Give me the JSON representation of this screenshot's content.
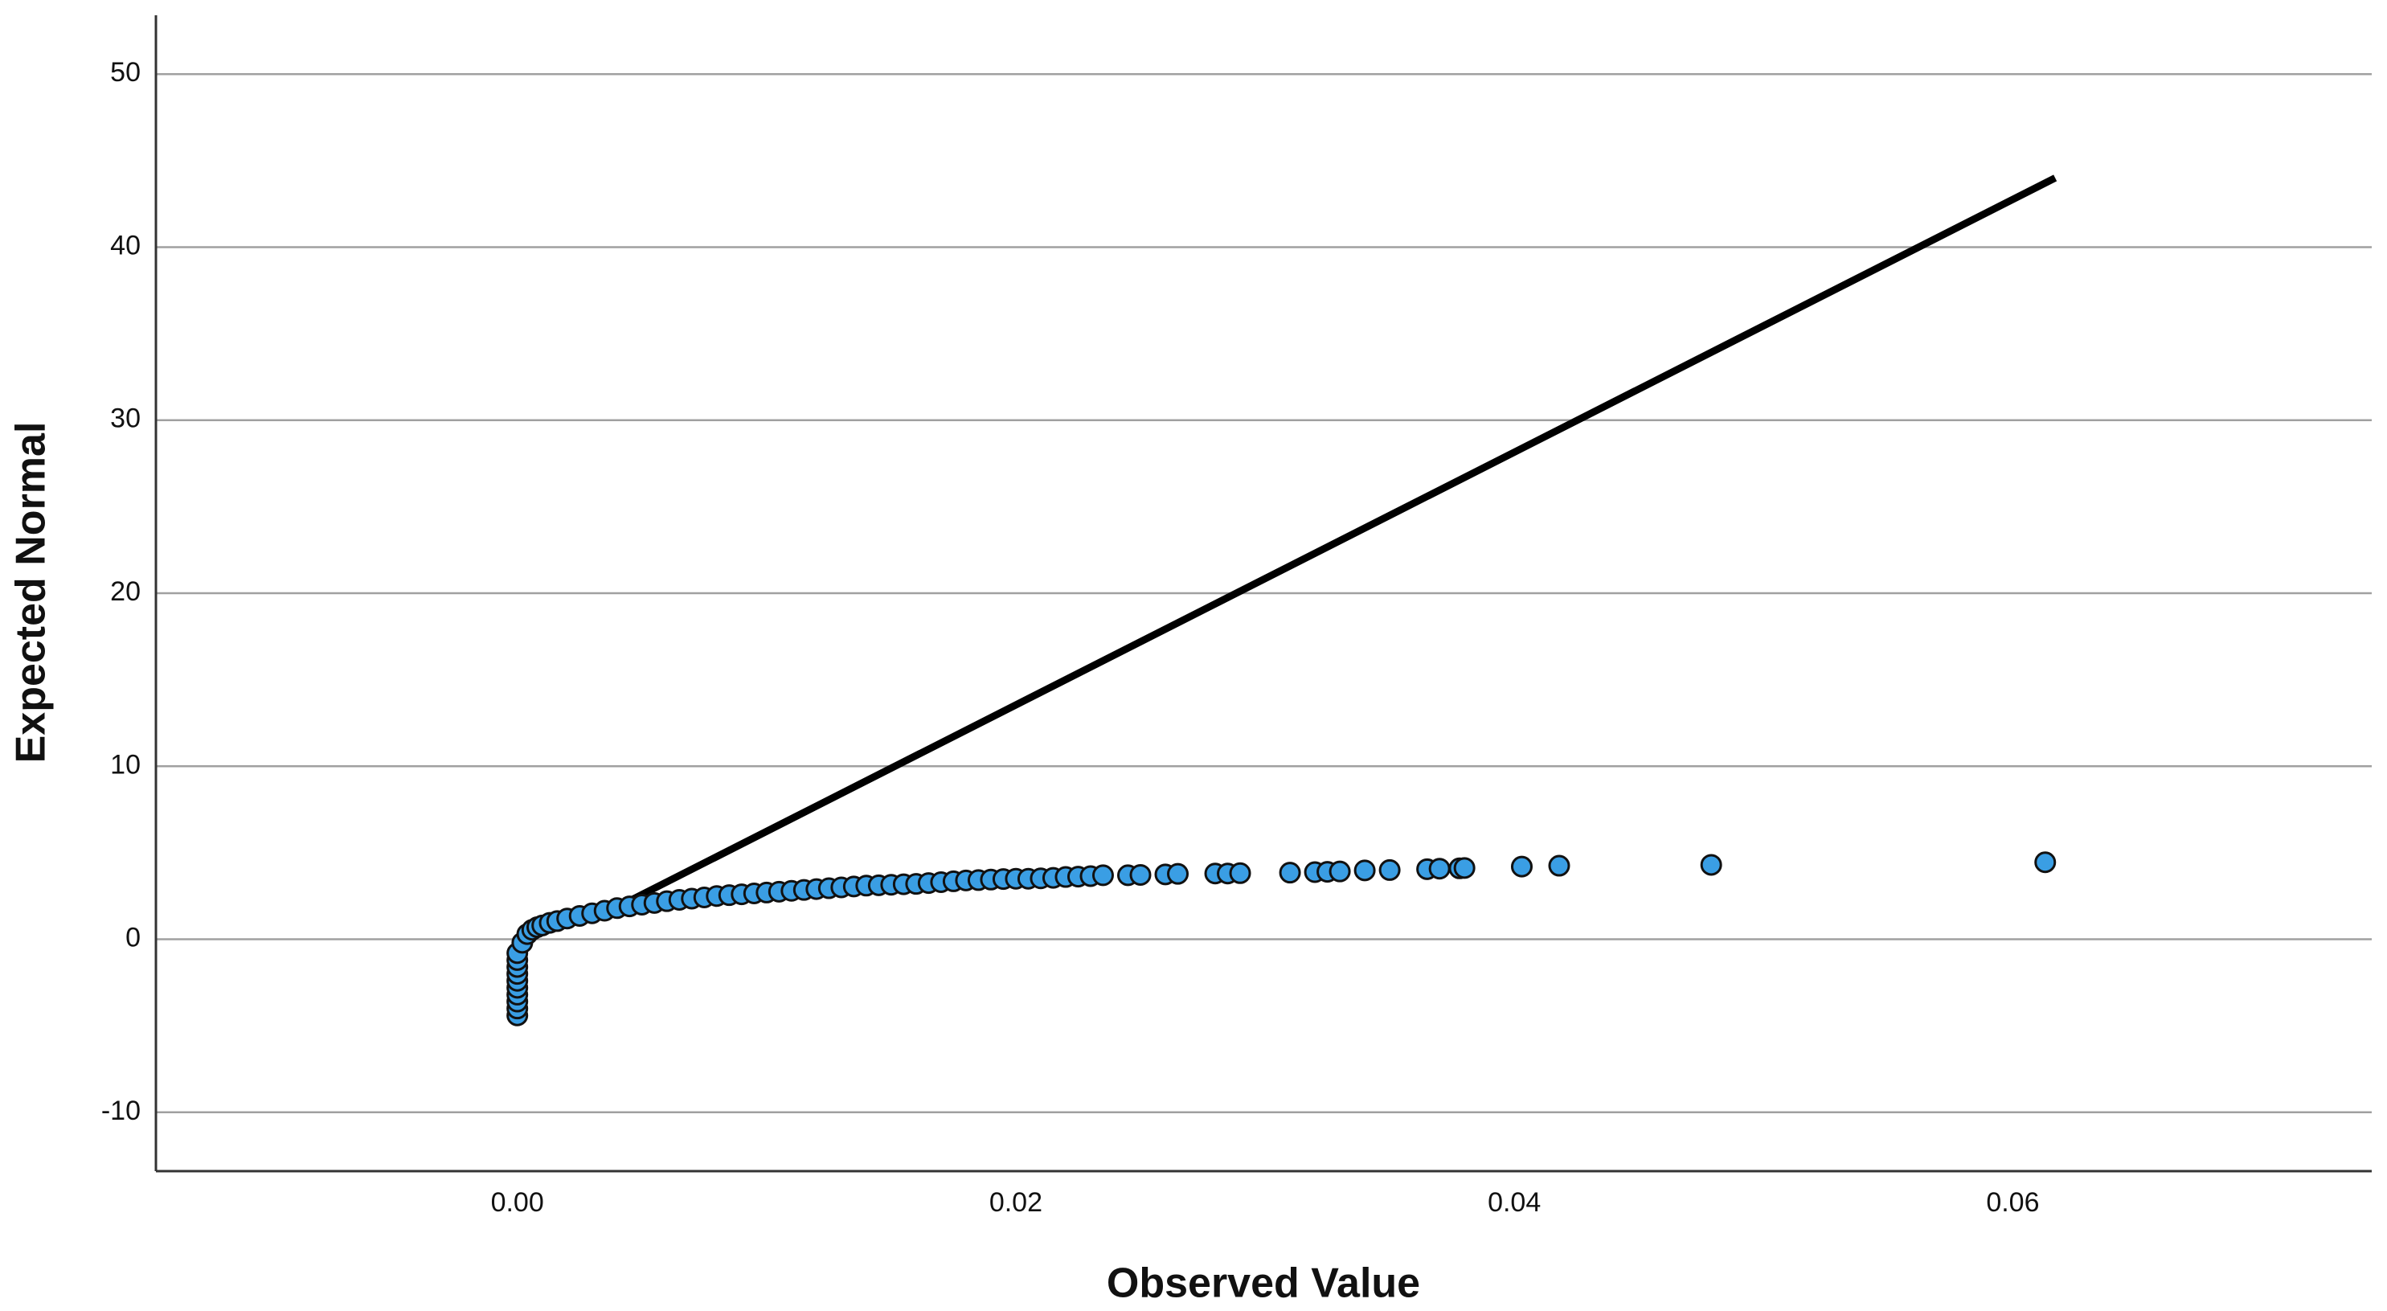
{
  "chart_data": {
    "type": "scatter",
    "x_label": "Observed Value",
    "y_label": "Expected Normal",
    "xlim": [
      -0.0145,
      0.0744
    ],
    "ylim": [
      -13.4,
      53.4
    ],
    "xticks": [
      {
        "value": 0,
        "label": "0.00"
      },
      {
        "value": 0.02,
        "label": "0.02"
      },
      {
        "value": 0.04,
        "label": "0.04"
      },
      {
        "value": 0.06,
        "label": "0.06"
      }
    ],
    "yticks": [
      -10,
      0,
      10,
      20,
      30,
      40,
      50
    ],
    "grid": true,
    "color": "#3a9ee4",
    "x": [
      0,
      0,
      0,
      0,
      0,
      0,
      0,
      0,
      0,
      0,
      0.0002,
      0.0004,
      0.0006,
      0.0008,
      0.001,
      0.0013,
      0.0016,
      0.002,
      0.0025,
      0.003,
      0.0035,
      0.004,
      0.0045,
      0.005,
      0.0055,
      0.006,
      0.0065,
      0.007,
      0.0075,
      0.008,
      0.0085,
      0.009,
      0.0095,
      0.01,
      0.0105,
      0.011,
      0.0115,
      0.012,
      0.0125,
      0.013,
      0.0135,
      0.014,
      0.0145,
      0.015,
      0.0155,
      0.016,
      0.0165,
      0.017,
      0.0175,
      0.018,
      0.0185,
      0.019,
      0.0195,
      0.02,
      0.0205,
      0.021,
      0.0215,
      0.022,
      0.0225,
      0.023,
      0.0235,
      0.0245,
      0.025,
      0.026,
      0.0265,
      0.028,
      0.0285,
      0.029,
      0.031,
      0.032,
      0.0325,
      0.033,
      0.034,
      0.035,
      0.0365,
      0.037,
      0.0378,
      0.038,
      0.0403,
      0.0418,
      0.0479,
      0.0613
    ],
    "values": [
      -4.4,
      -4.0,
      -3.6,
      -3.2,
      -2.8,
      -2.4,
      -2.0,
      -1.6,
      -1.2,
      -0.8,
      -0.2,
      0.3,
      0.55,
      0.7,
      0.8,
      0.95,
      1.05,
      1.2,
      1.35,
      1.5,
      1.65,
      1.8,
      1.9,
      2.0,
      2.1,
      2.2,
      2.28,
      2.35,
      2.42,
      2.5,
      2.55,
      2.6,
      2.65,
      2.7,
      2.75,
      2.8,
      2.85,
      2.9,
      2.95,
      3.0,
      3.05,
      3.1,
      3.12,
      3.15,
      3.18,
      3.2,
      3.25,
      3.3,
      3.35,
      3.4,
      3.42,
      3.45,
      3.48,
      3.5,
      3.5,
      3.52,
      3.55,
      3.6,
      3.62,
      3.65,
      3.7,
      3.7,
      3.72,
      3.75,
      3.78,
      3.8,
      3.8,
      3.82,
      3.85,
      3.88,
      3.9,
      3.92,
      3.98,
      4.0,
      4.05,
      4.08,
      4.1,
      4.12,
      4.2,
      4.25,
      4.3,
      4.45
    ],
    "reference_line": {
      "x": [
        0.0042,
        0.0617
      ],
      "y": [
        2.0,
        44.0
      ],
      "color": "#000000"
    }
  }
}
